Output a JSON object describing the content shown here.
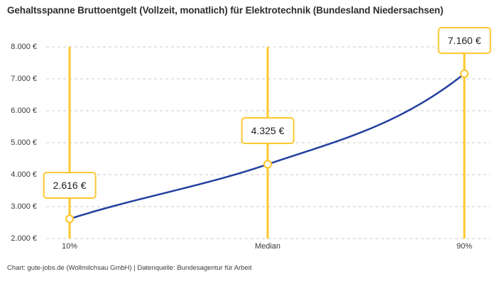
{
  "chart_data": {
    "type": "line",
    "title": "Gehaltsspanne Bruttoentgelt (Vollzeit, monatlich) für Elektrotechnik (Bundesland Niedersachsen)",
    "categories": [
      "10%",
      "Median",
      "90%"
    ],
    "values": [
      2616,
      4325,
      7160
    ],
    "value_labels": [
      "2.616 €",
      "4.325 €",
      "7.160 €"
    ],
    "ylim": [
      2000,
      8000
    ],
    "ytick_step": 1000,
    "ytick_labels": [
      "2.000 €",
      "3.000 €",
      "4.000 €",
      "5.000 €",
      "6.000 €",
      "7.000 €",
      "8.000 €"
    ],
    "grid": "dashed-horizontal",
    "legend": "none",
    "colors": {
      "curve": "#22409f",
      "marker_line": "#fdc72f",
      "marker_fill": "#ffffff",
      "grid": "#c9c9c9"
    }
  },
  "footer": {
    "credit": "Chart: gute-jobs.de (Wollmilchsau GmbH) | Datenquelle: Bundesagentur für Arbeit"
  }
}
